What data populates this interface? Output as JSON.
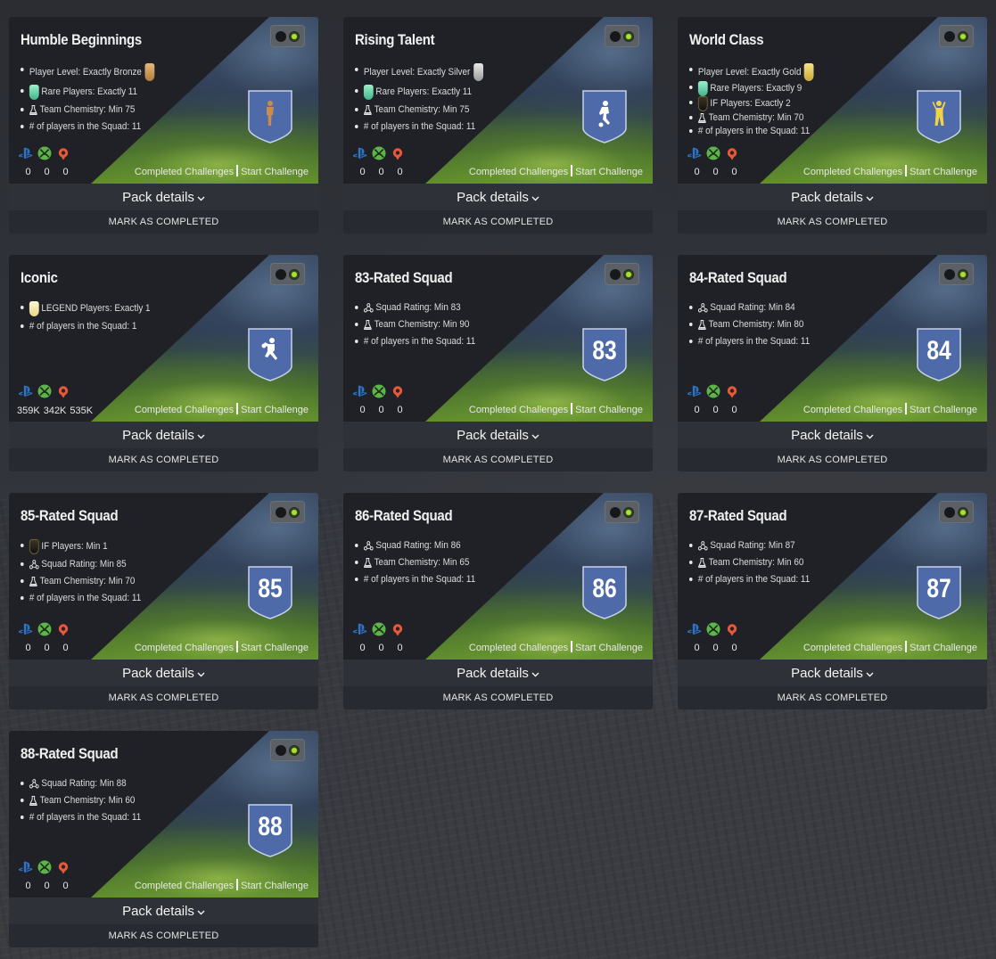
{
  "common": {
    "completed_challenges": "Completed Challenges",
    "start_challenge": "Start Challenge",
    "pack_details": "Pack details",
    "mark_completed": "MARK AS COMPLETED"
  },
  "colors": {
    "shield_fill": "#4e6aa8",
    "toggle_active": "#a6e22e",
    "ps_blue": "#2f74c8",
    "xbox_green": "#5cb548",
    "pc_orange": "#e8593a"
  },
  "cards": [
    {
      "title": "Humble Beginnings",
      "badge": {
        "type": "player",
        "icon": "player-silhouette-icon",
        "color": "#c98b4e"
      },
      "requirements": [
        {
          "icon": "bullet",
          "suffix_icon": "bronze-badge-icon",
          "text": "Player Level: Exactly Bronze"
        },
        {
          "icon": "rare-card-icon",
          "text": "Rare Players: Exactly 11"
        },
        {
          "icon": "chemistry-flask-icon",
          "text": "Team Chemistry: Min 75"
        },
        {
          "icon": "bullet",
          "text": "# of players in the Squad: 11"
        }
      ],
      "counts": [
        "0",
        "0",
        "0"
      ]
    },
    {
      "title": "Rising Talent",
      "badge": {
        "type": "player",
        "icon": "player-silhouette-icon",
        "color": "#ffffff"
      },
      "requirements": [
        {
          "icon": "bullet",
          "suffix_icon": "silver-badge-icon",
          "text": "Player Level: Exactly Silver"
        },
        {
          "icon": "rare-card-icon",
          "text": "Rare Players: Exactly 11"
        },
        {
          "icon": "chemistry-flask-icon",
          "text": "Team Chemistry: Min 75"
        },
        {
          "icon": "bullet",
          "text": "# of players in the Squad: 11"
        }
      ],
      "counts": [
        "0",
        "0",
        "0"
      ]
    },
    {
      "title": "World Class",
      "badge": {
        "type": "player",
        "icon": "player-silhouette-icon",
        "color": "#f0d24a"
      },
      "requirements": [
        {
          "icon": "bullet",
          "suffix_icon": "gold-badge-icon",
          "text": "Player Level: Exactly Gold"
        },
        {
          "icon": "rare-card-icon",
          "text": "Rare Players: Exactly 9"
        },
        {
          "icon": "if-card-icon",
          "text": "IF Players: Exactly 2"
        },
        {
          "icon": "chemistry-flask-icon",
          "text": "Team Chemistry: Min 70"
        },
        {
          "icon": "bullet",
          "text": "# of players in the Squad: 11"
        }
      ],
      "counts": [
        "0",
        "0",
        "0"
      ]
    },
    {
      "title": "Iconic",
      "badge": {
        "type": "player",
        "icon": "player-silhouette-icon",
        "color": "#ffffff"
      },
      "requirements": [
        {
          "icon": "legend-card-icon",
          "text": "LEGEND Players: Exactly 1"
        },
        {
          "icon": "bullet",
          "text": "# of players in the Squad: 1"
        }
      ],
      "counts": [
        "359K",
        "342K",
        "535K"
      ]
    },
    {
      "title": "83-Rated Squad",
      "badge": {
        "type": "rating",
        "value": "83"
      },
      "requirements": [
        {
          "icon": "squad-rating-icon",
          "text": "Squad Rating: Min 83"
        },
        {
          "icon": "chemistry-flask-icon",
          "text": "Team Chemistry: Min 90"
        },
        {
          "icon": "bullet",
          "text": "# of players in the Squad: 11"
        }
      ],
      "counts": [
        "0",
        "0",
        "0"
      ]
    },
    {
      "title": "84-Rated Squad",
      "badge": {
        "type": "rating",
        "value": "84"
      },
      "requirements": [
        {
          "icon": "squad-rating-icon",
          "text": "Squad Rating: Min 84"
        },
        {
          "icon": "chemistry-flask-icon",
          "text": "Team Chemistry: Min 80"
        },
        {
          "icon": "bullet",
          "text": "# of players in the Squad: 11"
        }
      ],
      "counts": [
        "0",
        "0",
        "0"
      ]
    },
    {
      "title": "85-Rated Squad",
      "badge": {
        "type": "rating",
        "value": "85"
      },
      "requirements": [
        {
          "icon": "if-card-icon",
          "text": "IF Players: Min 1"
        },
        {
          "icon": "squad-rating-icon",
          "text": "Squad Rating: Min 85"
        },
        {
          "icon": "chemistry-flask-icon",
          "text": "Team Chemistry: Min 70"
        },
        {
          "icon": "bullet",
          "text": "# of players in the Squad: 11"
        }
      ],
      "counts": [
        "0",
        "0",
        "0"
      ]
    },
    {
      "title": "86-Rated Squad",
      "badge": {
        "type": "rating",
        "value": "86"
      },
      "requirements": [
        {
          "icon": "squad-rating-icon",
          "text": "Squad Rating: Min 86"
        },
        {
          "icon": "chemistry-flask-icon",
          "text": "Team Chemistry: Min 65"
        },
        {
          "icon": "bullet",
          "text": "# of players in the Squad: 11"
        }
      ],
      "counts": [
        "0",
        "0",
        "0"
      ]
    },
    {
      "title": "87-Rated Squad",
      "badge": {
        "type": "rating",
        "value": "87"
      },
      "requirements": [
        {
          "icon": "squad-rating-icon",
          "text": "Squad Rating: Min 87"
        },
        {
          "icon": "chemistry-flask-icon",
          "text": "Team Chemistry: Min 60"
        },
        {
          "icon": "bullet",
          "text": "# of players in the Squad: 11"
        }
      ],
      "counts": [
        "0",
        "0",
        "0"
      ]
    },
    {
      "title": "88-Rated Squad",
      "badge": {
        "type": "rating",
        "value": "88"
      },
      "requirements": [
        {
          "icon": "squad-rating-icon",
          "text": "Squad Rating: Min 88"
        },
        {
          "icon": "chemistry-flask-icon",
          "text": "Team Chemistry: Min 60"
        },
        {
          "icon": "bullet",
          "text": "# of players in the Squad: 11"
        }
      ],
      "counts": [
        "0",
        "0",
        "0"
      ]
    }
  ]
}
